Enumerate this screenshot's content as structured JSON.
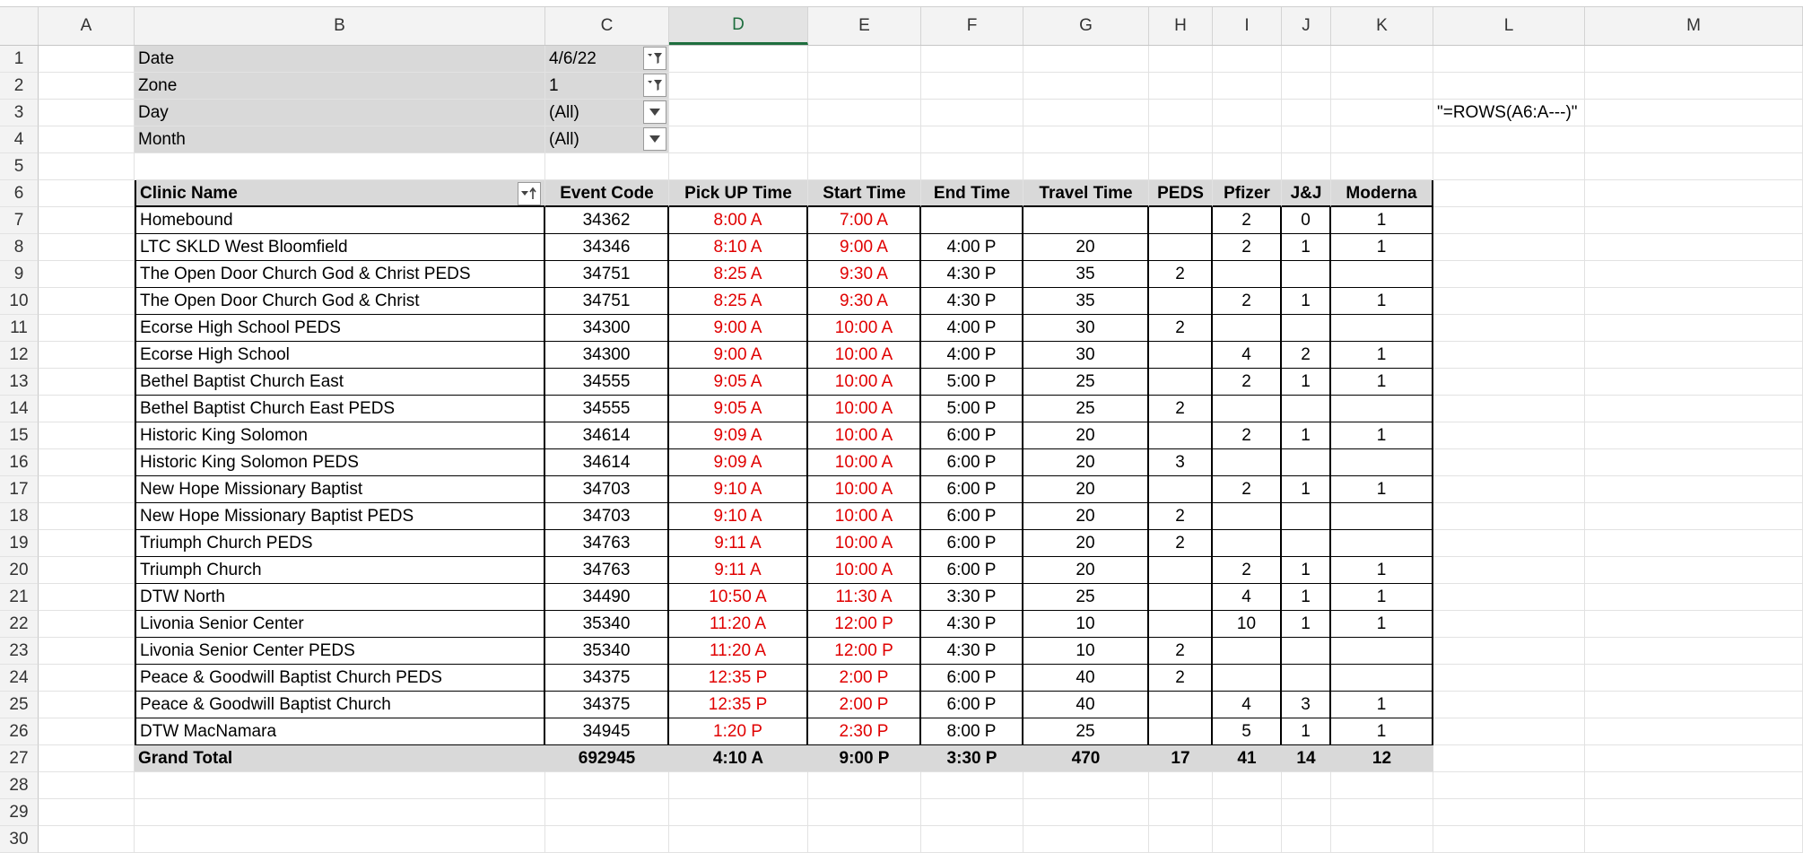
{
  "columns": [
    "A",
    "B",
    "C",
    "D",
    "E",
    "F",
    "G",
    "H",
    "I",
    "J",
    "K",
    "L",
    "M"
  ],
  "rows": [
    "1",
    "2",
    "3",
    "4",
    "5",
    "6",
    "7",
    "8",
    "9",
    "10",
    "11",
    "12",
    "13",
    "14",
    "15",
    "16",
    "17",
    "18",
    "19",
    "20",
    "21",
    "22",
    "23",
    "24",
    "25",
    "26",
    "27",
    "28",
    "29",
    "30"
  ],
  "filters": [
    {
      "label": "Date",
      "value": "4/6/22"
    },
    {
      "label": "Zone",
      "value": "1"
    },
    {
      "label": "Day",
      "value": "(All)"
    },
    {
      "label": "Month",
      "value": "(All)"
    }
  ],
  "formula_note": "\"=ROWS(A6:A---)\"",
  "table_headers": [
    "Clinic Name",
    "Event Code",
    "Pick UP Time",
    "Start Time",
    "End Time",
    "Travel Time",
    "PEDS",
    "Pfizer",
    "J&J",
    "Moderna"
  ],
  "table_rows": [
    [
      "Homebound",
      "34362",
      "8:00 A",
      "7:00 A",
      "",
      "",
      "",
      "2",
      "0",
      "1"
    ],
    [
      "LTC SKLD West Bloomfield",
      "34346",
      "8:10 A",
      "9:00 A",
      "4:00 P",
      "20",
      "",
      "2",
      "1",
      "1"
    ],
    [
      "The Open Door Church God & Christ PEDS",
      "34751",
      "8:25 A",
      "9:30 A",
      "4:30 P",
      "35",
      "2",
      "",
      "",
      ""
    ],
    [
      "The Open Door Church God & Christ",
      "34751",
      "8:25 A",
      "9:30 A",
      "4:30 P",
      "35",
      "",
      "2",
      "1",
      "1"
    ],
    [
      "Ecorse High School PEDS",
      "34300",
      "9:00 A",
      "10:00 A",
      "4:00 P",
      "30",
      "2",
      "",
      "",
      ""
    ],
    [
      "Ecorse High School",
      "34300",
      "9:00 A",
      "10:00 A",
      "4:00 P",
      "30",
      "",
      "4",
      "2",
      "1"
    ],
    [
      "Bethel Baptist Church East",
      "34555",
      "9:05 A",
      "10:00 A",
      "5:00 P",
      "25",
      "",
      "2",
      "1",
      "1"
    ],
    [
      "Bethel Baptist Church East PEDS",
      "34555",
      "9:05 A",
      "10:00 A",
      "5:00 P",
      "25",
      "2",
      "",
      "",
      ""
    ],
    [
      "Historic King Solomon",
      "34614",
      "9:09 A",
      "10:00 A",
      "6:00 P",
      "20",
      "",
      "2",
      "1",
      "1"
    ],
    [
      "Historic King Solomon PEDS",
      "34614",
      "9:09 A",
      "10:00 A",
      "6:00 P",
      "20",
      "3",
      "",
      "",
      ""
    ],
    [
      "New Hope Missionary Baptist",
      "34703",
      "9:10 A",
      "10:00 A",
      "6:00 P",
      "20",
      "",
      "2",
      "1",
      "1"
    ],
    [
      "New Hope Missionary Baptist PEDS",
      "34703",
      "9:10 A",
      "10:00 A",
      "6:00 P",
      "20",
      "2",
      "",
      "",
      ""
    ],
    [
      "Triumph Church PEDS",
      "34763",
      "9:11 A",
      "10:00 A",
      "6:00 P",
      "20",
      "2",
      "",
      "",
      ""
    ],
    [
      "Triumph Church",
      "34763",
      "9:11 A",
      "10:00 A",
      "6:00 P",
      "20",
      "",
      "2",
      "1",
      "1"
    ],
    [
      "DTW North",
      "34490",
      "10:50 A",
      "11:30 A",
      "3:30 P",
      "25",
      "",
      "4",
      "1",
      "1"
    ],
    [
      "Livonia Senior Center",
      "35340",
      "11:20 A",
      "12:00 P",
      "4:30 P",
      "10",
      "",
      "10",
      "1",
      "1"
    ],
    [
      "Livonia Senior Center PEDS",
      "35340",
      "11:20 A",
      "12:00 P",
      "4:30 P",
      "10",
      "2",
      "",
      "",
      ""
    ],
    [
      "Peace & Goodwill Baptist Church PEDS",
      "34375",
      "12:35 P",
      "2:00 P",
      "6:00 P",
      "40",
      "2",
      "",
      "",
      ""
    ],
    [
      "Peace & Goodwill Baptist Church",
      "34375",
      "12:35 P",
      "2:00 P",
      "6:00 P",
      "40",
      "",
      "4",
      "3",
      "1"
    ],
    [
      "DTW MacNamara",
      "34945",
      "1:20 P",
      "2:30 P",
      "8:00 P",
      "25",
      "",
      "5",
      "1",
      "1"
    ]
  ],
  "grand_total": [
    "Grand Total",
    "692945",
    "4:10 A",
    "9:00 P",
    "3:30 P",
    "470",
    "17",
    "41",
    "14",
    "12"
  ]
}
